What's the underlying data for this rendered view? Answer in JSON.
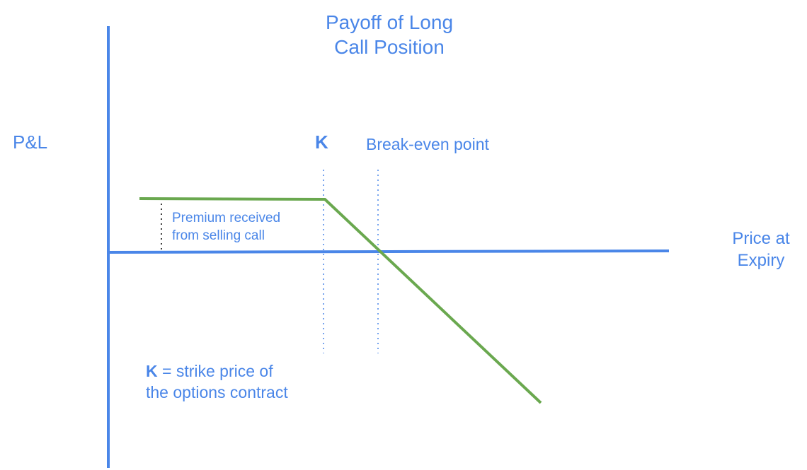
{
  "title": {
    "line1": "Payoff of Long",
    "line2": "Call Position"
  },
  "y_axis_label": "P&L",
  "x_axis_label": {
    "line1": "Price at",
    "line2": "Expiry"
  },
  "strike_label": "K",
  "break_even_label": "Break-even point",
  "premium_label": {
    "line1": "Premium received",
    "line2": "from selling call"
  },
  "note": {
    "symbol": "K",
    "line1_rest": " = strike price of",
    "line2": "the options contract"
  },
  "colors": {
    "axis": "#4a86e8",
    "payoff": "#6aa84f",
    "text": "#4a86e8",
    "premium_marker": "#000000"
  }
}
